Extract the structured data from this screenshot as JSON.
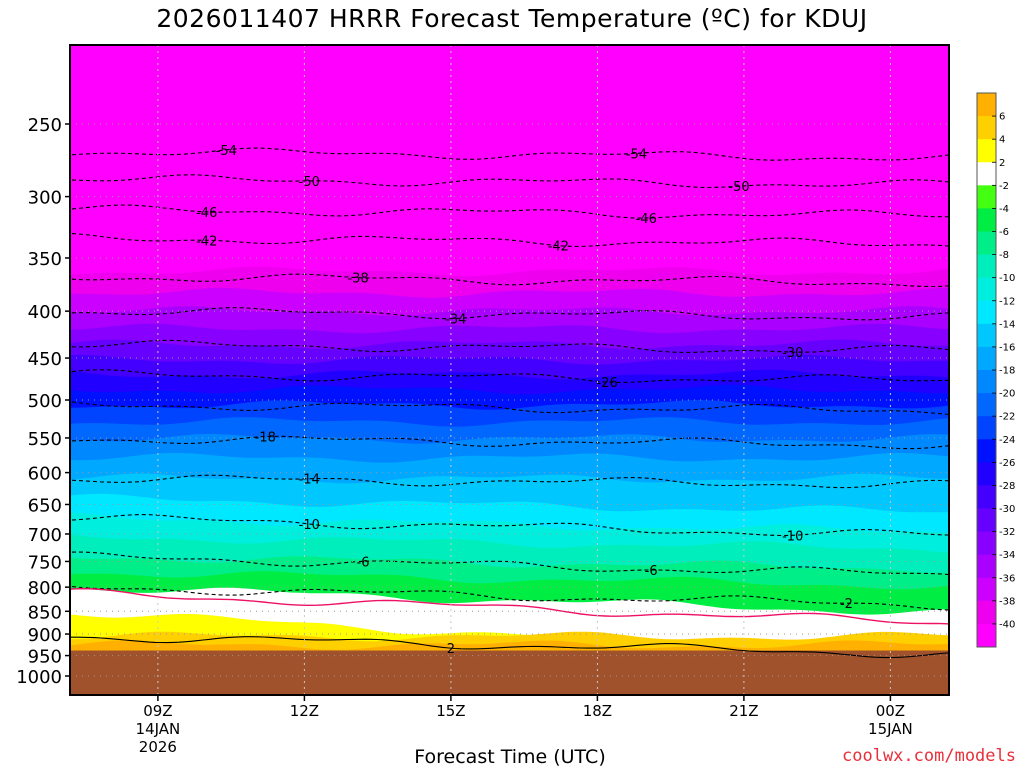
{
  "title": "2026011407 HRRR Forecast Temperature (ºC) for KDUJ",
  "xlabel": "Forecast Time (UTC)",
  "credit": "coolwx.com/models",
  "chart_data": {
    "type": "heatmap",
    "variable": "Temperature (ºC)",
    "y_axis": {
      "scale": "log",
      "reversed": true,
      "ylim": [
        1000,
        200
      ],
      "ticks": [
        250,
        300,
        350,
        400,
        450,
        500,
        550,
        600,
        650,
        700,
        750,
        800,
        850,
        900,
        950,
        1000
      ]
    },
    "x_axis": {
      "xlim": [
        7.2,
        25.2
      ],
      "ticks": [
        {
          "x": 9,
          "label": "09Z",
          "sub": [
            "14JAN",
            "2026"
          ]
        },
        {
          "x": 12,
          "label": "12Z",
          "sub": []
        },
        {
          "x": 15,
          "label": "15Z",
          "sub": []
        },
        {
          "x": 18,
          "label": "18Z",
          "sub": []
        },
        {
          "x": 21,
          "label": "21Z",
          "sub": []
        },
        {
          "x": 24,
          "label": "00Z",
          "sub": [
            "15JAN"
          ]
        }
      ]
    },
    "grid": true,
    "colorbar": {
      "labels": [
        "6",
        "4",
        "2",
        "-2",
        "-4",
        "-6",
        "-8",
        "-10",
        "-12",
        "-14",
        "-16",
        "-18",
        "-20",
        "-22",
        "-24",
        "-26",
        "-28",
        "-30",
        "-32",
        "-34",
        "-36",
        "-38",
        "-40"
      ],
      "colors": [
        "#ffb000",
        "#ffd000",
        "#ffff00",
        "#ffffff",
        "#44ff11",
        "#00ee44",
        "#00ee88",
        "#00eebb",
        "#00eedd",
        "#00e8ff",
        "#00c8ff",
        "#00a8ff",
        "#0088ff",
        "#0068ff",
        "#0044ff",
        "#0011ff",
        "#2200ff",
        "#4400ff",
        "#6600ff",
        "#8800ff",
        "#aa00ff",
        "#cc00ff",
        "#ee00ee",
        "#ff00ff"
      ],
      "colder_than_min": "#ff00ff"
    },
    "surface_color": "#a0522d",
    "surface_top_pressure": 938,
    "contours": [
      {
        "value": -54,
        "pressure": 268,
        "labels": [
          10.4,
          18.8
        ]
      },
      {
        "value": -50,
        "pressure": 287,
        "labels": [
          12.1,
          20.9
        ]
      },
      {
        "value": -46,
        "pressure": 310,
        "labels": [
          10.0,
          19.0
        ]
      },
      {
        "value": -42,
        "pressure": 333,
        "labels": [
          10.0,
          17.2
        ]
      },
      {
        "value": -38,
        "pressure": 367,
        "labels": [
          13.1
        ]
      },
      {
        "value": -34,
        "pressure": 400,
        "labels": [
          15.1
        ]
      },
      {
        "value": -30,
        "pressure": 435,
        "labels": [
          22.0
        ]
      },
      {
        "value": -26,
        "pressure": 469,
        "labels": [
          18.2
        ]
      },
      {
        "value": -22,
        "pressure": 506,
        "labels": []
      },
      {
        "value": -18,
        "pressure": 551,
        "labels": [
          11.2
        ]
      },
      {
        "value": -14,
        "pressure": 609,
        "labels": [
          12.1
        ]
      },
      {
        "value": -10,
        "pressure": 672,
        "labels": [
          12.1,
          22.0
        ]
      },
      {
        "value": -6,
        "pressure": 741,
        "labels": [
          13.2,
          19.1
        ]
      },
      {
        "value": -2,
        "pressure": 800,
        "labels": [
          23.1
        ]
      },
      {
        "value": 2,
        "pressure": 905,
        "labels": [
          15.0
        ]
      }
    ],
    "freezing_line": {
      "value": 0,
      "color": "#ee1166"
    }
  }
}
